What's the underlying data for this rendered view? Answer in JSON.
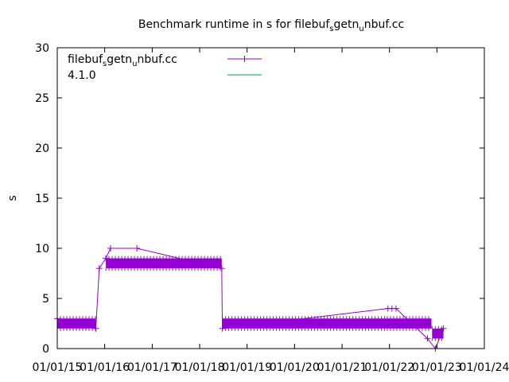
{
  "chart_data": {
    "type": "line",
    "title": {
      "prefix": "Benchmark runtime in s for filebuf",
      "sub1": "s",
      "mid": "getn",
      "sub2": "u",
      "suffix": "nbuf.cc"
    },
    "xlabel": "",
    "ylabel": "s",
    "x_ticks": [
      "01/01/15",
      "01/01/16",
      "01/01/17",
      "01/01/18",
      "01/01/19",
      "01/01/20",
      "01/01/21",
      "01/01/22",
      "01/01/23",
      "01/01/24"
    ],
    "x_range": [
      "2015-01-01",
      "2024-01-01"
    ],
    "y_ticks": [
      0,
      5,
      10,
      15,
      20,
      25,
      30
    ],
    "ylim": [
      0,
      30
    ],
    "legend_position": "top-left",
    "series": [
      {
        "name": {
          "prefix": "filebuf",
          "sub1": "s",
          "mid": "getn",
          "sub2": "u",
          "suffix": "nbuf.cc"
        },
        "color": "#9400d3",
        "band_segments": [
          {
            "start": "2015-01-01",
            "end": "2015-10-25",
            "low": 2.0,
            "high": 3.0
          },
          {
            "start": "2016-01-10",
            "end": "2018-06-20",
            "low": 8.0,
            "high": 9.0
          },
          {
            "start": "2018-06-25",
            "end": "2021-12-15",
            "low": 2.0,
            "high": 3.0
          },
          {
            "start": "2021-12-15",
            "end": "2022-11-20",
            "low": 2.0,
            "high": 3.0
          },
          {
            "start": "2022-11-25",
            "end": "2023-02-20",
            "low": 1.0,
            "high": 2.0
          }
        ],
        "points": [
          {
            "x": "2015-01-01",
            "y": 3.0
          },
          {
            "x": "2015-10-25",
            "y": 2.0
          },
          {
            "x": "2015-11-20",
            "y": 8.0
          },
          {
            "x": "2016-01-10",
            "y": 9.0
          },
          {
            "x": "2016-02-15",
            "y": 10.0
          },
          {
            "x": "2016-09-05",
            "y": 10.0
          },
          {
            "x": "2018-06-20",
            "y": 8.0
          },
          {
            "x": "2018-06-25",
            "y": 2.0
          },
          {
            "x": "2021-12-20",
            "y": 4.0
          },
          {
            "x": "2022-01-20",
            "y": 4.0
          },
          {
            "x": "2022-02-20",
            "y": 4.0
          },
          {
            "x": "2022-10-20",
            "y": 1.0
          },
          {
            "x": "2022-12-20",
            "y": 0.0
          },
          {
            "x": "2023-02-20",
            "y": 2.0
          }
        ]
      },
      {
        "name": "4.1.0",
        "color": "#009e73",
        "points": []
      }
    ],
    "grid": false
  }
}
